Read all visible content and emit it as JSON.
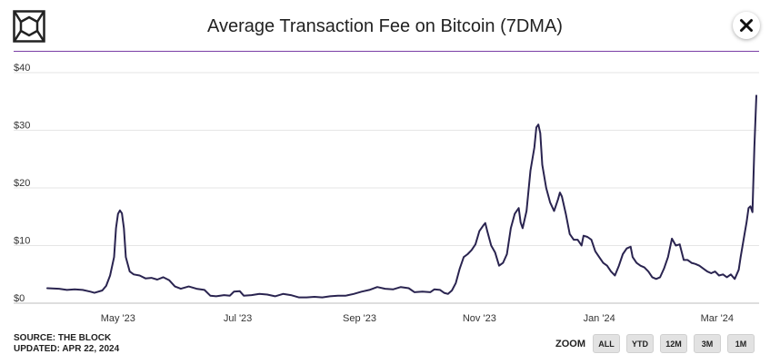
{
  "title": "Average Transaction Fee on Bitcoin (7DMA)",
  "source": {
    "line1": "SOURCE: THE BLOCK",
    "line2": "UPDATED: APR 22, 2024"
  },
  "zoom": {
    "label": "ZOOM",
    "buttons": [
      "ALL",
      "YTD",
      "12M",
      "3M",
      "1M"
    ]
  },
  "colors": {
    "line": "#2a2450",
    "accent": "#7a3ea6",
    "grid": "#e6e6e6"
  },
  "chart_data": {
    "type": "line",
    "title": "Average Transaction Fee on Bitcoin (7DMA)",
    "xlabel": "",
    "ylabel": "",
    "ylim": [
      0,
      40
    ],
    "yticks": [
      0,
      10,
      20,
      30,
      40
    ],
    "ytick_labels": [
      "$0",
      "$10",
      "$20",
      "$30",
      "$40"
    ],
    "xticks": [
      {
        "label": "May '23",
        "day": 36
      },
      {
        "label": "Jul '23",
        "day": 97
      },
      {
        "label": "Sep '23",
        "day": 159
      },
      {
        "label": "Nov '23",
        "day": 220
      },
      {
        "label": "Jan '24",
        "day": 281
      },
      {
        "label": "Mar '24",
        "day": 341
      }
    ],
    "x_unit": "days since 2023-03-27",
    "series": [
      {
        "name": "Average Transaction Fee (7DMA)",
        "points": [
          [
            0,
            2.6
          ],
          [
            6,
            2.5
          ],
          [
            10,
            2.3
          ],
          [
            14,
            2.4
          ],
          [
            18,
            2.3
          ],
          [
            22,
            2.0
          ],
          [
            24,
            1.8
          ],
          [
            28,
            2.2
          ],
          [
            30,
            3.0
          ],
          [
            32,
            4.8
          ],
          [
            34,
            8.0
          ],
          [
            35,
            13.0
          ],
          [
            36,
            15.5
          ],
          [
            37,
            16.1
          ],
          [
            38,
            15.6
          ],
          [
            39,
            13.0
          ],
          [
            40,
            8.0
          ],
          [
            42,
            5.5
          ],
          [
            44,
            5.0
          ],
          [
            47,
            4.8
          ],
          [
            50,
            4.3
          ],
          [
            53,
            4.4
          ],
          [
            56,
            4.1
          ],
          [
            59,
            4.5
          ],
          [
            62,
            4.0
          ],
          [
            65,
            2.9
          ],
          [
            68,
            2.5
          ],
          [
            72,
            2.9
          ],
          [
            76,
            2.5
          ],
          [
            80,
            2.3
          ],
          [
            83,
            1.3
          ],
          [
            86,
            1.2
          ],
          [
            90,
            1.4
          ],
          [
            93,
            1.3
          ],
          [
            95,
            2.0
          ],
          [
            98,
            2.1
          ],
          [
            100,
            1.3
          ],
          [
            104,
            1.4
          ],
          [
            108,
            1.6
          ],
          [
            112,
            1.5
          ],
          [
            116,
            1.2
          ],
          [
            120,
            1.6
          ],
          [
            124,
            1.4
          ],
          [
            128,
            1.0
          ],
          [
            132,
            1.0
          ],
          [
            136,
            1.1
          ],
          [
            140,
            1.0
          ],
          [
            144,
            1.2
          ],
          [
            148,
            1.3
          ],
          [
            152,
            1.3
          ],
          [
            156,
            1.6
          ],
          [
            160,
            2.0
          ],
          [
            164,
            2.3
          ],
          [
            168,
            2.8
          ],
          [
            172,
            2.5
          ],
          [
            176,
            2.4
          ],
          [
            180,
            2.8
          ],
          [
            184,
            2.6
          ],
          [
            187,
            1.9
          ],
          [
            191,
            2.0
          ],
          [
            195,
            1.9
          ],
          [
            197,
            2.4
          ],
          [
            200,
            2.3
          ],
          [
            202,
            1.8
          ],
          [
            204,
            1.6
          ],
          [
            206,
            2.2
          ],
          [
            208,
            3.5
          ],
          [
            210,
            6.0
          ],
          [
            212,
            8.0
          ],
          [
            214,
            8.5
          ],
          [
            216,
            9.2
          ],
          [
            218,
            10.2
          ],
          [
            220,
            12.5
          ],
          [
            222,
            13.5
          ],
          [
            223,
            13.9
          ],
          [
            224,
            12.5
          ],
          [
            226,
            10.0
          ],
          [
            228,
            8.8
          ],
          [
            230,
            6.5
          ],
          [
            232,
            7.0
          ],
          [
            234,
            8.5
          ],
          [
            236,
            13.0
          ],
          [
            238,
            15.5
          ],
          [
            240,
            16.5
          ],
          [
            241,
            14.0
          ],
          [
            242,
            13.0
          ],
          [
            244,
            16.0
          ],
          [
            246,
            23.0
          ],
          [
            248,
            27.0
          ],
          [
            249,
            30.5
          ],
          [
            250,
            31.0
          ],
          [
            251,
            29.5
          ],
          [
            252,
            24.0
          ],
          [
            254,
            20.0
          ],
          [
            256,
            17.5
          ],
          [
            258,
            16.0
          ],
          [
            260,
            18.0
          ],
          [
            261,
            19.2
          ],
          [
            262,
            18.5
          ],
          [
            264,
            15.5
          ],
          [
            266,
            12.0
          ],
          [
            268,
            11.0
          ],
          [
            270,
            11.0
          ],
          [
            272,
            10.0
          ],
          [
            273,
            11.7
          ],
          [
            275,
            11.5
          ],
          [
            277,
            11.0
          ],
          [
            279,
            9.0
          ],
          [
            281,
            8.0
          ],
          [
            283,
            7.0
          ],
          [
            285,
            6.5
          ],
          [
            287,
            5.5
          ],
          [
            289,
            4.8
          ],
          [
            291,
            6.5
          ],
          [
            293,
            8.5
          ],
          [
            295,
            9.5
          ],
          [
            297,
            9.8
          ],
          [
            298,
            8.0
          ],
          [
            300,
            7.0
          ],
          [
            302,
            6.5
          ],
          [
            304,
            6.2
          ],
          [
            306,
            5.5
          ],
          [
            308,
            4.5
          ],
          [
            310,
            4.2
          ],
          [
            312,
            4.5
          ],
          [
            314,
            6.0
          ],
          [
            316,
            8.0
          ],
          [
            318,
            11.2
          ],
          [
            320,
            10.0
          ],
          [
            322,
            10.2
          ],
          [
            324,
            7.5
          ],
          [
            326,
            7.5
          ],
          [
            328,
            7.0
          ],
          [
            330,
            6.8
          ],
          [
            332,
            6.5
          ],
          [
            334,
            6.0
          ],
          [
            336,
            5.5
          ],
          [
            338,
            5.2
          ],
          [
            340,
            5.5
          ],
          [
            342,
            4.8
          ],
          [
            344,
            5.0
          ],
          [
            346,
            4.5
          ],
          [
            348,
            5.0
          ],
          [
            350,
            4.2
          ],
          [
            352,
            5.8
          ],
          [
            353,
            8.0
          ],
          [
            355,
            12.0
          ],
          [
            356,
            14.0
          ],
          [
            357,
            16.5
          ],
          [
            358,
            16.8
          ],
          [
            359,
            15.8
          ],
          [
            360,
            27.0
          ],
          [
            361,
            36.0
          ]
        ]
      }
    ],
    "x_range": [
      0,
      361
    ]
  }
}
